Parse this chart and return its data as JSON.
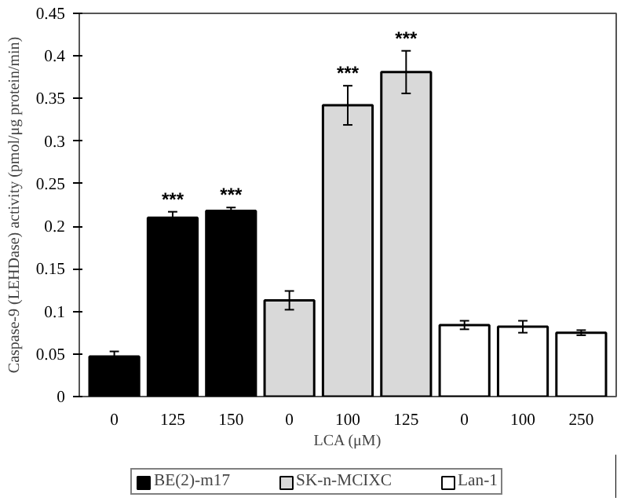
{
  "chart_data": {
    "type": "bar",
    "xlabel": "LCA (μM)",
    "ylabel": "Caspase-9 (LEHDase) activity (pmol/μg protein/min)",
    "categories": [
      "0",
      "125",
      "150",
      "0",
      "100",
      "125",
      "0",
      "100",
      "250"
    ],
    "ylim": [
      0,
      0.45
    ],
    "yticks": [
      0,
      0.05,
      0.1,
      0.15,
      0.2,
      0.25,
      0.3,
      0.35,
      0.4,
      0.45
    ],
    "grid": false,
    "legend": "bottom",
    "series": [
      {
        "name": "BE(2)-m17",
        "color": "#000000",
        "values": [
          0.047,
          0.21,
          0.218,
          null,
          null,
          null,
          null,
          null,
          null
        ],
        "errors": [
          0.006,
          0.007,
          0.004,
          null,
          null,
          null,
          null,
          null,
          null
        ],
        "value_labels": [
          null,
          "***",
          "***",
          null,
          null,
          null,
          null,
          null,
          null
        ]
      },
      {
        "name": "SK-n-MCIXC",
        "color": "#d9d9d9",
        "values": [
          null,
          null,
          null,
          0.113,
          0.342,
          0.381,
          null,
          null,
          null
        ],
        "errors": [
          null,
          null,
          null,
          0.011,
          0.023,
          0.025,
          null,
          null,
          null
        ],
        "value_labels": [
          null,
          null,
          null,
          null,
          "***",
          "***",
          null,
          null,
          null
        ]
      },
      {
        "name": "Lan-1",
        "color": "#ffffff",
        "values": [
          null,
          null,
          null,
          null,
          null,
          null,
          0.084,
          0.082,
          0.075
        ],
        "errors": [
          null,
          null,
          null,
          null,
          null,
          null,
          0.005,
          0.007,
          0.003
        ],
        "value_labels": [
          null,
          null,
          null,
          null,
          null,
          null,
          null,
          null,
          null
        ]
      }
    ]
  }
}
